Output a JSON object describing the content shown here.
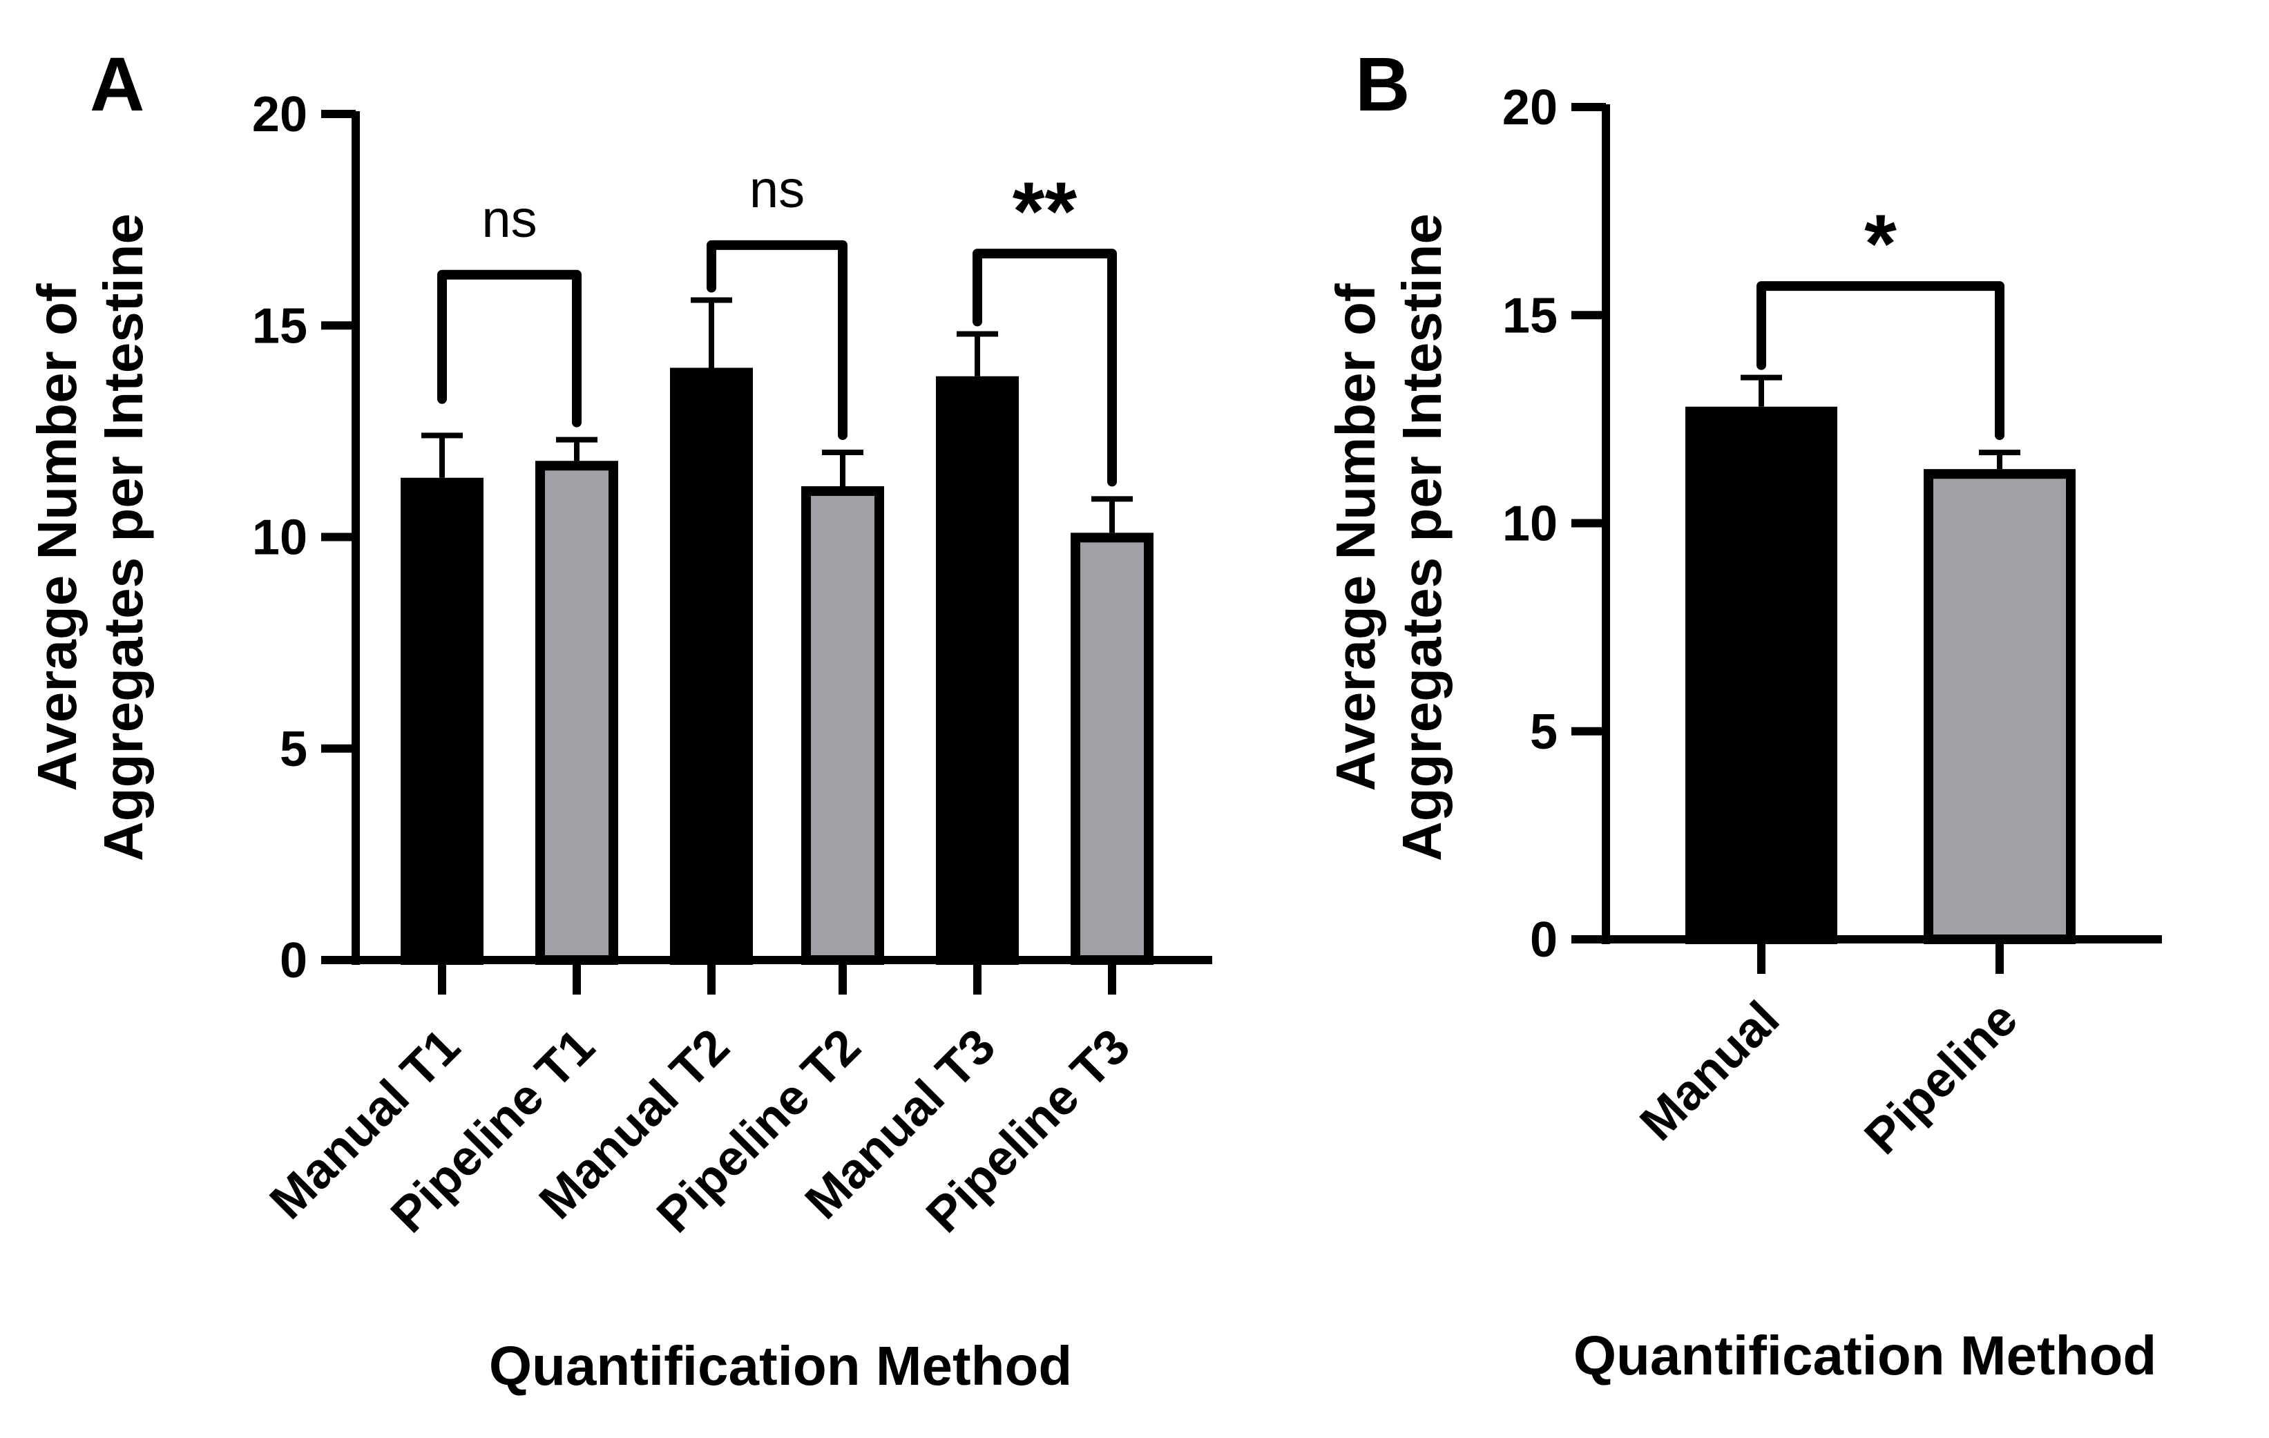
{
  "figure": {
    "panels": [
      "A",
      "B"
    ]
  },
  "colors": {
    "manual": "#000000",
    "pipeline": "#a0a0a6",
    "axis": "#000000"
  },
  "chart_data": [
    {
      "panel": "A",
      "type": "bar",
      "categories": [
        "Manual T1",
        "Pipeline T1",
        "Manual T2",
        "Pipeline T2",
        "Manual T3",
        "Pipeline T3"
      ],
      "values": [
        11.4,
        11.8,
        14.0,
        11.2,
        13.8,
        10.1
      ],
      "errors": [
        1.0,
        0.5,
        1.6,
        0.8,
        1.0,
        0.8
      ],
      "bar_colors": [
        "#000000",
        "#a0a0a6",
        "#000000",
        "#a0a0a6",
        "#000000",
        "#a0a0a6"
      ],
      "ylabel_line1": "Average Number of",
      "ylabel_line2": "Aggregates per Intestine",
      "xlabel": "Quantification Method",
      "ylim": [
        0,
        20
      ],
      "yticks": [
        "0",
        "5",
        "10",
        "15",
        "20"
      ],
      "significance": [
        {
          "from": 0,
          "to": 1,
          "label": "ns",
          "level": 16.2
        },
        {
          "from": 2,
          "to": 3,
          "label": "ns",
          "level": 16.9
        },
        {
          "from": 4,
          "to": 5,
          "label": "**",
          "level": 16.7
        }
      ]
    },
    {
      "panel": "B",
      "type": "bar",
      "categories": [
        "Manual",
        "Pipeline"
      ],
      "values": [
        12.8,
        11.3
      ],
      "errors": [
        0.7,
        0.4
      ],
      "bar_colors": [
        "#000000",
        "#a0a0a6"
      ],
      "ylabel_line1": "Average Number of",
      "ylabel_line2": "Aggregates per Intestine",
      "xlabel": "Quantification Method",
      "ylim": [
        0,
        20
      ],
      "yticks": [
        "0",
        "5",
        "10",
        "15",
        "20"
      ],
      "significance": [
        {
          "from": 0,
          "to": 1,
          "label": "*",
          "level": 15.7
        }
      ]
    }
  ]
}
